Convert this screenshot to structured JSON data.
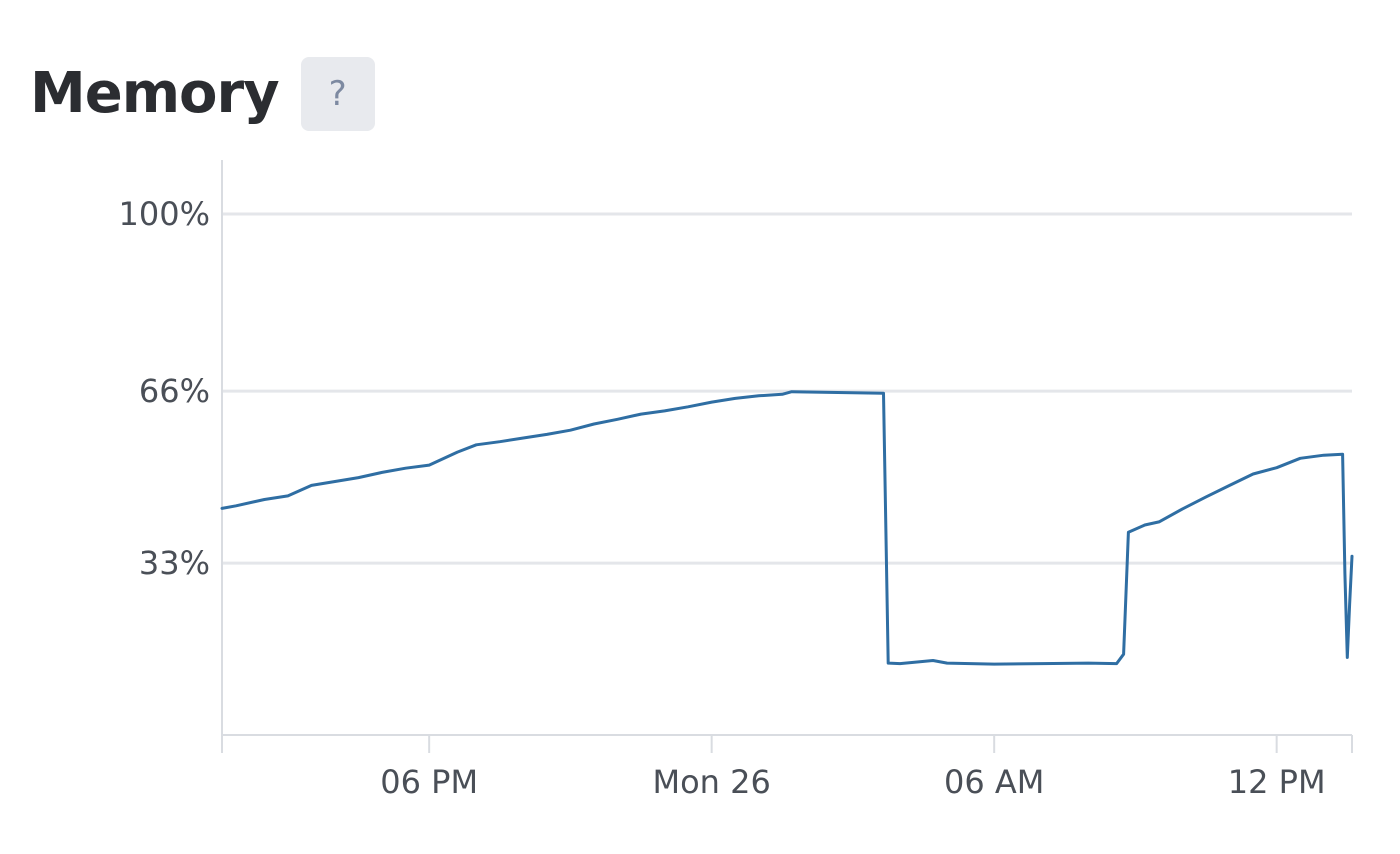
{
  "header": {
    "title": "Memory",
    "help_label": "?"
  },
  "colors": {
    "line": "#2f6ea3",
    "grid": "#e4e6ea",
    "axis": "#d9dce1",
    "tick_text": "#4a4f57"
  },
  "chart_data": {
    "type": "line",
    "title": "Memory",
    "xlabel": "",
    "ylabel": "",
    "ylim": [
      0,
      100
    ],
    "grid": true,
    "y_ticks": [
      {
        "value": 33,
        "label": "33%"
      },
      {
        "value": 66,
        "label": "66%"
      },
      {
        "value": 100,
        "label": "100%"
      }
    ],
    "x_ticks": [
      {
        "value": 18,
        "label": "06 PM"
      },
      {
        "value": 24,
        "label": "Mon 26"
      },
      {
        "value": 30,
        "label": "06 AM"
      },
      {
        "value": 36,
        "label": "12 PM"
      }
    ],
    "xlim": [
      13.6,
      37.6
    ],
    "series": [
      {
        "name": "",
        "points": [
          [
            13.6,
            43.5
          ],
          [
            13.9,
            44.0
          ],
          [
            14.5,
            45.2
          ],
          [
            15.0,
            45.9
          ],
          [
            15.5,
            47.9
          ],
          [
            16.5,
            49.4
          ],
          [
            17.0,
            50.4
          ],
          [
            17.5,
            51.2
          ],
          [
            18.0,
            51.8
          ],
          [
            18.6,
            54.3
          ],
          [
            19.0,
            55.7
          ],
          [
            19.5,
            56.3
          ],
          [
            20.0,
            57.0
          ],
          [
            20.5,
            57.7
          ],
          [
            21.0,
            58.5
          ],
          [
            21.5,
            59.7
          ],
          [
            22.0,
            60.6
          ],
          [
            22.5,
            61.6
          ],
          [
            23.0,
            62.2
          ],
          [
            23.5,
            63.0
          ],
          [
            24.0,
            63.9
          ],
          [
            24.5,
            64.6
          ],
          [
            25.0,
            65.1
          ],
          [
            25.5,
            65.4
          ],
          [
            25.7,
            65.9
          ],
          [
            27.65,
            65.6
          ],
          [
            27.75,
            13.8
          ],
          [
            28.0,
            13.7
          ],
          [
            28.7,
            14.3
          ],
          [
            29.0,
            13.8
          ],
          [
            30.0,
            13.6
          ],
          [
            31.0,
            13.7
          ],
          [
            32.0,
            13.8
          ],
          [
            32.6,
            13.7
          ],
          [
            32.75,
            15.5
          ],
          [
            32.85,
            38.9
          ],
          [
            33.2,
            40.3
          ],
          [
            33.5,
            40.9
          ],
          [
            34.0,
            43.4
          ],
          [
            34.5,
            45.7
          ],
          [
            35.0,
            47.9
          ],
          [
            35.5,
            50.1
          ],
          [
            36.0,
            51.3
          ],
          [
            36.5,
            53.1
          ],
          [
            37.0,
            53.7
          ],
          [
            37.4,
            53.9
          ],
          [
            37.45,
            31.0
          ],
          [
            37.5,
            14.9
          ],
          [
            37.55,
            25.0
          ],
          [
            37.6,
            34.3
          ]
        ]
      }
    ]
  }
}
